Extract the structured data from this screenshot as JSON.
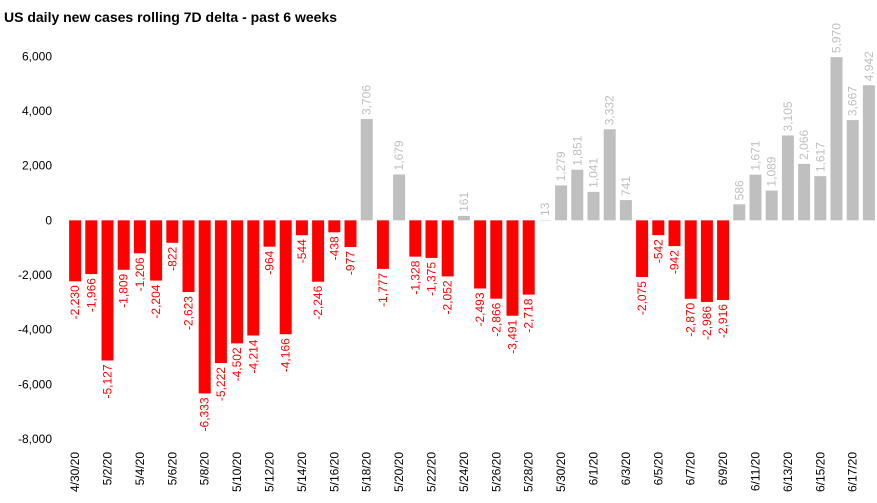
{
  "chart_data": {
    "type": "bar",
    "title": "US daily new cases rolling 7D delta - past 6 weeks",
    "categories": [
      "4/30/20",
      null,
      "5/2/20",
      null,
      "5/4/20",
      null,
      "5/6/20",
      null,
      "5/8/20",
      null,
      "5/10/20",
      null,
      "5/12/20",
      null,
      "5/14/20",
      null,
      "5/16/20",
      null,
      "5/18/20",
      null,
      "5/20/20",
      null,
      "5/22/20",
      null,
      "5/24/20",
      null,
      "5/26/20",
      null,
      "5/28/20",
      null,
      "5/30/20",
      null,
      "6/1/20",
      null,
      "6/3/20",
      null,
      "6/5/20",
      null,
      "6/7/20",
      null,
      "6/9/20",
      null,
      "6/11/20",
      null,
      "6/13/20",
      null,
      "6/15/20",
      null,
      "6/17/20",
      null
    ],
    "values": [
      -2230,
      -1966,
      -5127,
      -1809,
      -1206,
      -2204,
      -822,
      -2623,
      -6333,
      -5222,
      -4502,
      -4214,
      -964,
      -4166,
      -544,
      -2246,
      -438,
      -977,
      3706,
      -1777,
      1679,
      -1328,
      -1375,
      -2052,
      161,
      -2493,
      -2866,
      -3491,
      -2718,
      13,
      1279,
      1851,
      1041,
      3332,
      741,
      -2075,
      -542,
      -942,
      -2870,
      -2986,
      -2916,
      586,
      1671,
      1089,
      3105,
      2066,
      1617,
      5970,
      3667,
      4942
    ],
    "value_labels": [
      "-2,230",
      "-1,966",
      "-5,127",
      "-1,809",
      "-1,206",
      "-2,204",
      "-822",
      "-2,623",
      "-6,333",
      "-5,222",
      "-4,502",
      "-4,214",
      "-964",
      "-4,166",
      "-544",
      "-2,246",
      "-438",
      "-977",
      "3,706",
      "-1,777",
      "1,679",
      "-1,328",
      "-1,375",
      "-2,052",
      "161",
      "-2,493",
      "-2,866",
      "-3,491",
      "-2,718",
      "13",
      "1,279",
      "1,851",
      "1,041",
      "3,332",
      "741",
      "-2,075",
      "-542",
      "-942",
      "-2,870",
      "-2,986",
      "-2,916",
      "586",
      "1,671",
      "1,089",
      "3,105",
      "2,066",
      "1,617",
      "5,970",
      "3,667",
      "4,942"
    ],
    "positive_color": "#bfbfbf",
    "negative_color": "#ff0000",
    "ylim": [
      -8000,
      7000
    ],
    "yticks": [
      {
        "value": -8000,
        "label": "-8,000"
      },
      {
        "value": -6000,
        "label": "-6,000"
      },
      {
        "value": -4000,
        "label": "-4,000"
      },
      {
        "value": -2000,
        "label": "-2,000"
      },
      0,
      {
        "value": 2000,
        "label": "2,000"
      },
      {
        "value": 4000,
        "label": "4,000"
      },
      {
        "value": 6000,
        "label": "6,000"
      }
    ],
    "grid": false
  }
}
